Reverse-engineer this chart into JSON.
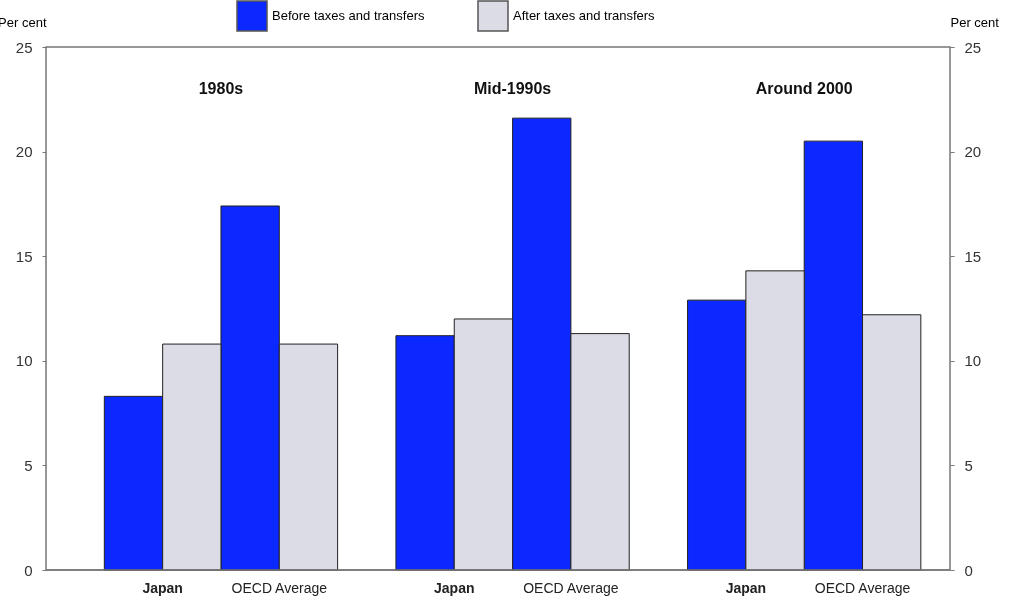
{
  "chart_data": {
    "type": "bar",
    "categories": [
      "Japan",
      "OECD Average",
      "Japan",
      "OECD Average",
      "Japan",
      "OECD Average"
    ],
    "series": [
      {
        "name": "Before taxes and transfers",
        "color": "#0a28ff",
        "values": [
          8.3,
          17.4,
          11.2,
          21.6,
          12.9,
          20.5
        ]
      },
      {
        "name": "After taxes and transfers",
        "color": "#dcdce6",
        "values": [
          10.8,
          10.8,
          12.0,
          11.3,
          14.3,
          12.2
        ]
      }
    ],
    "ylabel": "Per cent",
    "y2label": "Per cent",
    "ylim": [
      0,
      25
    ],
    "yticks": [
      0,
      5,
      10,
      15,
      20,
      25
    ],
    "y2lim": [
      0,
      25
    ],
    "y2ticks": [
      0,
      5,
      10,
      15,
      20,
      25
    ],
    "annotations": [
      "1980s",
      "Mid-1990s",
      "Around 2000"
    ],
    "legend": "top",
    "grid": false
  }
}
